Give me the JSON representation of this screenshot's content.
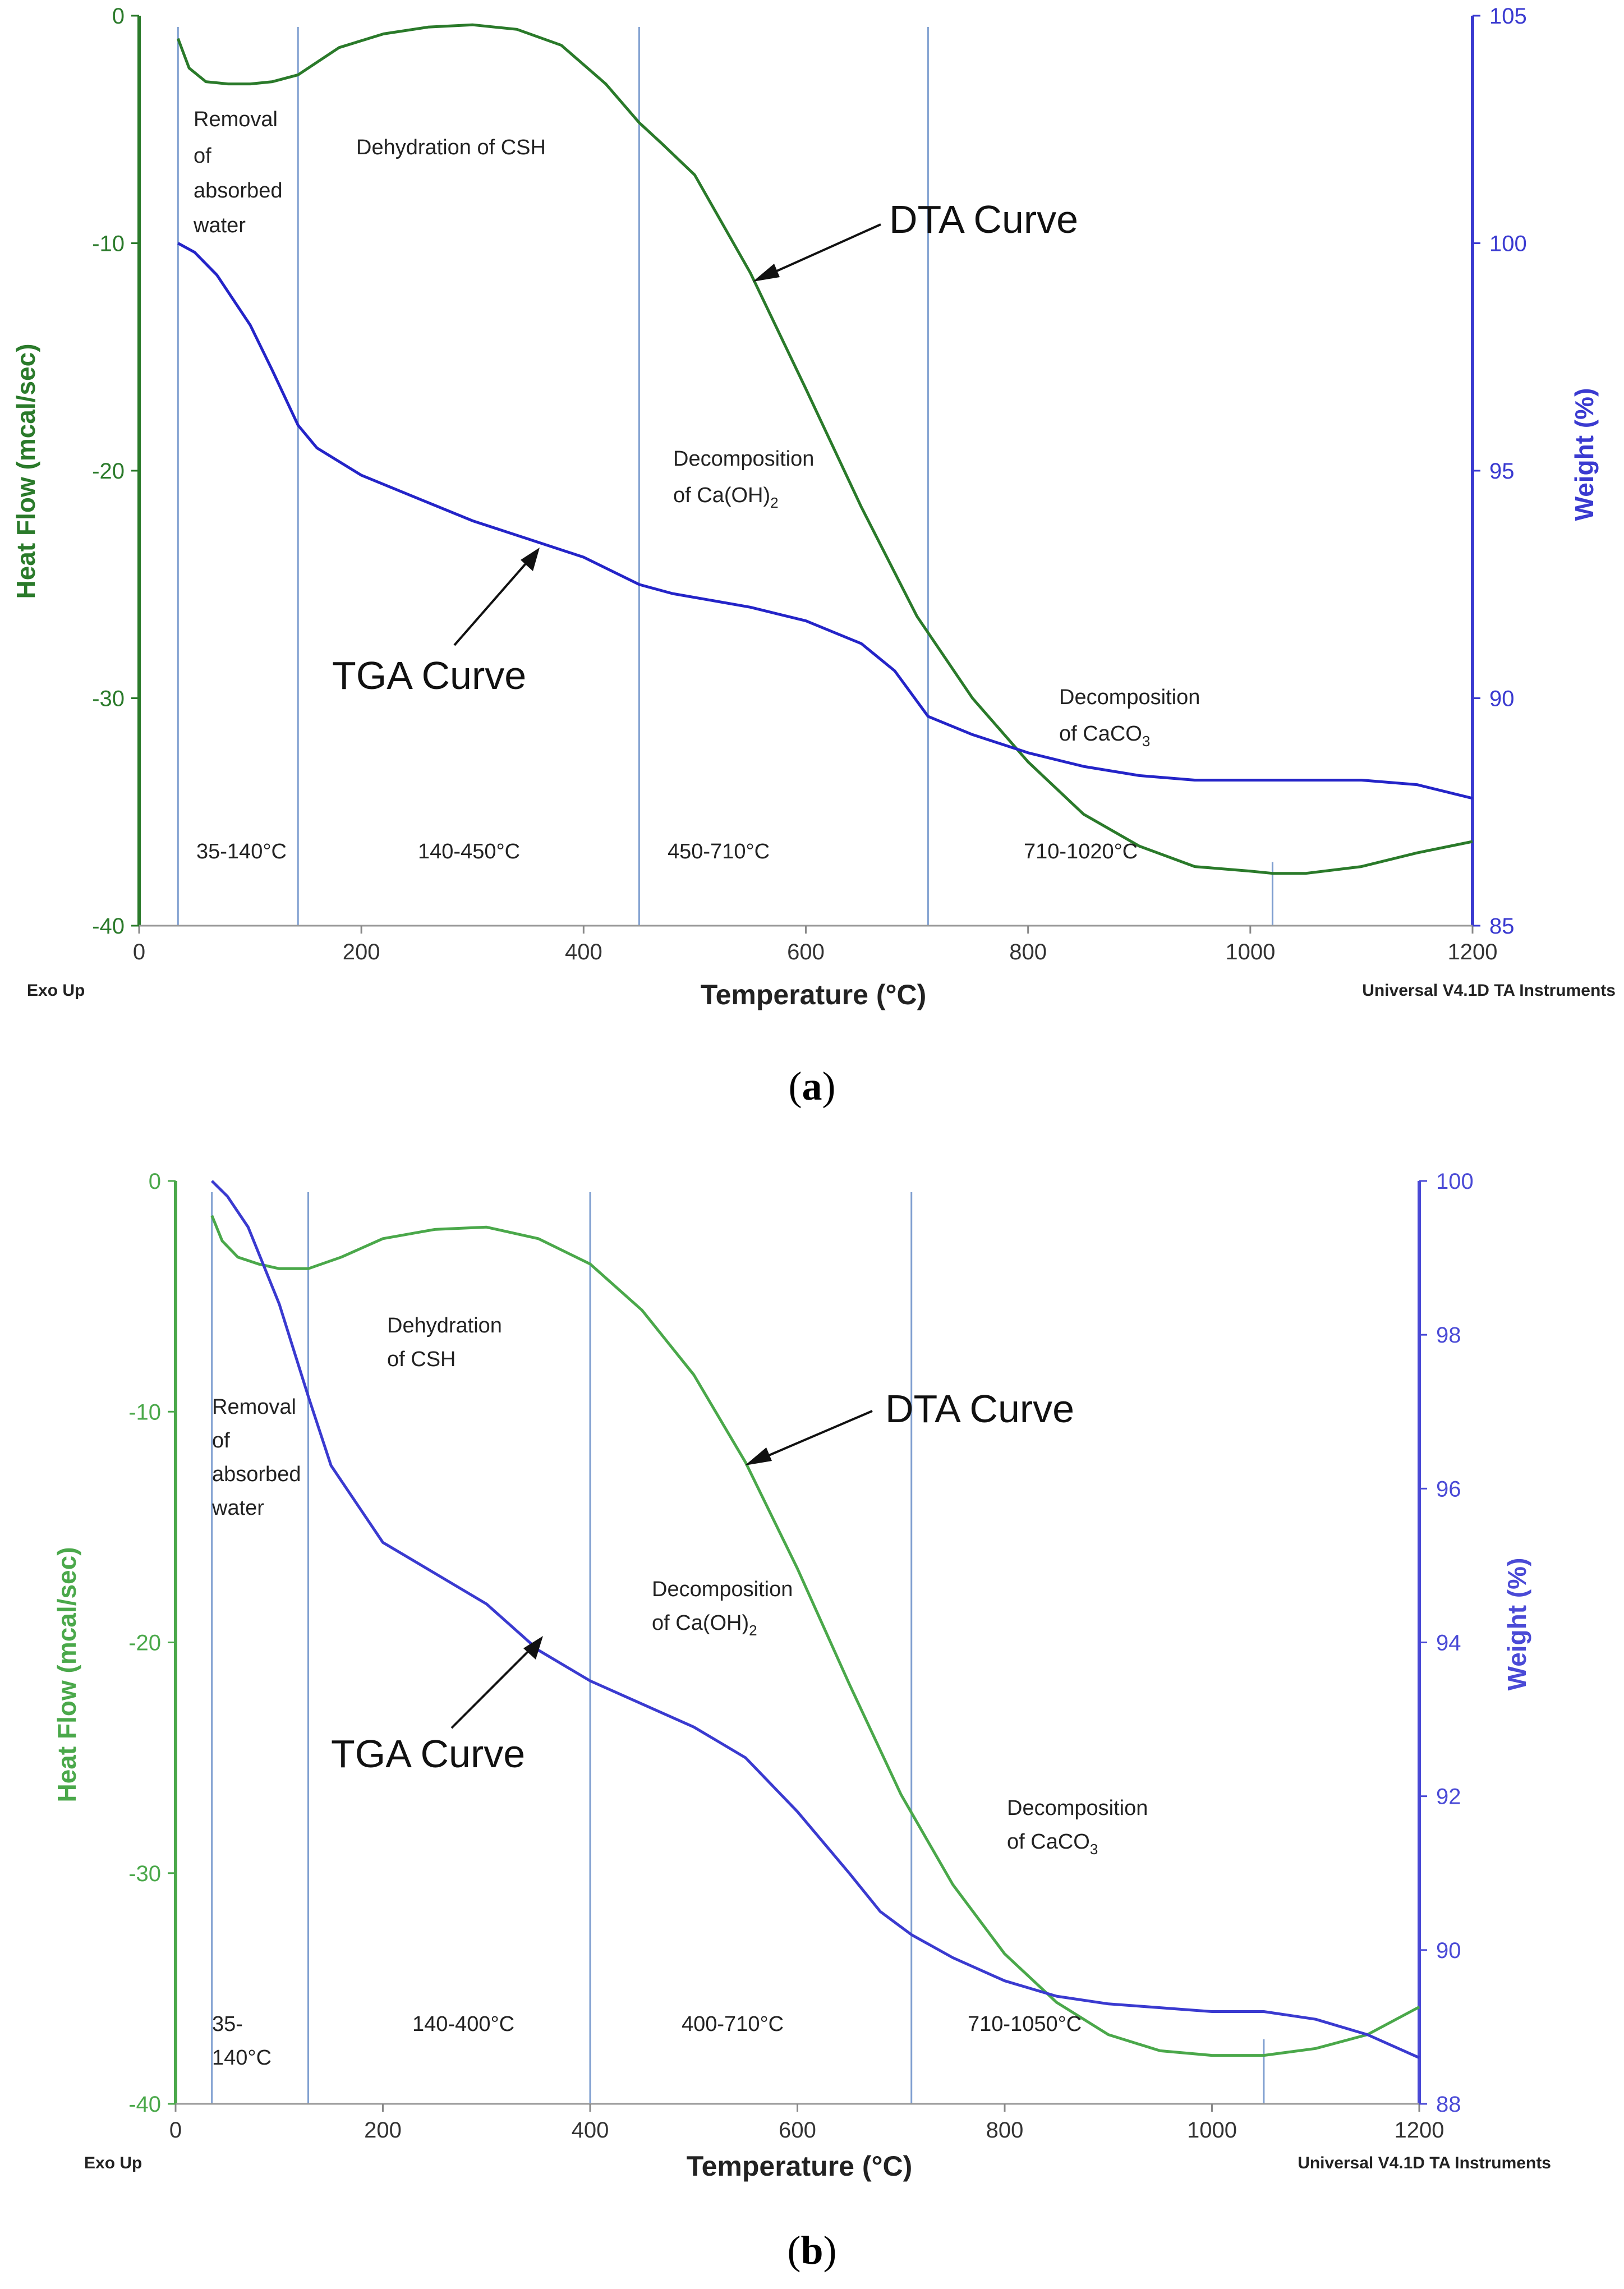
{
  "chart_data": [
    {
      "id": "a",
      "type": "line",
      "panel_label": "a",
      "xlabel": "Temperature (°C)",
      "ylabel_left": "Heat Flow (mcal/sec)",
      "ylabel_right": "Weight (%)",
      "footer_left": "Exo Up",
      "footer_right": "Universal V4.1D TA Instruments",
      "x_range": [
        0,
        1200
      ],
      "x_ticks": [
        0,
        200,
        400,
        600,
        800,
        1000,
        1200
      ],
      "y_left_range": [
        -40,
        0
      ],
      "y_left_ticks": [
        0,
        -10,
        -20,
        -30,
        -40
      ],
      "y_right_range": [
        85,
        105
      ],
      "y_right_ticks": [
        105,
        100,
        95,
        90,
        85
      ],
      "colors": {
        "dta": "#2a7a2a",
        "tga": "#2424c8",
        "axis_left": "#2a7a2a",
        "axis_right": "#3a3ad0",
        "divider": "#7f9fd0"
      },
      "dividers": [
        35,
        143,
        450,
        710,
        1020
      ],
      "series": [
        {
          "name": "DTA Curve",
          "axis": "left",
          "x": [
            35,
            45,
            60,
            80,
            100,
            120,
            143,
            180,
            220,
            260,
            300,
            340,
            380,
            420,
            450,
            470,
            500,
            550,
            600,
            650,
            700,
            750,
            800,
            850,
            900,
            950,
            1000,
            1020,
            1050,
            1100,
            1150,
            1200
          ],
          "y": [
            -1,
            -2.3,
            -2.9,
            -3.0,
            -3.0,
            -2.9,
            -2.6,
            -1.4,
            -0.8,
            -0.5,
            -0.4,
            -0.6,
            -1.3,
            -3.0,
            -4.7,
            -5.6,
            -7.0,
            -11.3,
            -16.4,
            -21.6,
            -26.4,
            -30.0,
            -32.8,
            -35.1,
            -36.5,
            -37.4,
            -37.6,
            -37.7,
            -37.7,
            -37.4,
            -36.8,
            -36.3
          ]
        },
        {
          "name": "TGA Curve",
          "axis": "right",
          "x": [
            35,
            50,
            70,
            100,
            120,
            143,
            160,
            200,
            250,
            300,
            350,
            400,
            450,
            480,
            550,
            600,
            650,
            680,
            710,
            750,
            800,
            850,
            900,
            950,
            1000,
            1050,
            1100,
            1150,
            1200
          ],
          "y": [
            100,
            99.8,
            99.3,
            98.2,
            97.2,
            96.0,
            95.5,
            94.9,
            94.4,
            93.9,
            93.5,
            93.1,
            92.5,
            92.3,
            92.0,
            91.7,
            91.2,
            90.6,
            89.6,
            89.2,
            88.8,
            88.5,
            88.3,
            88.2,
            88.2,
            88.2,
            88.2,
            88.1,
            87.8
          ]
        }
      ],
      "annotations": {
        "region1_title": [
          "Removal",
          "of",
          "absorbed",
          "water"
        ],
        "region2_title": "Dehydration of CSH",
        "region3_title_line1": "Decomposition",
        "region3_title_line2": "of Ca(OH)",
        "region3_sub": "2",
        "region4_title_line1": "Decomposition",
        "region4_title_line2": "of CaCO",
        "region4_sub": "3",
        "range1": "35-140°C",
        "range2": "140-450°C",
        "range3": "450-710°C",
        "range4": "710-1020°C",
        "dta_label": "DTA Curve",
        "tga_label": "TGA Curve"
      }
    },
    {
      "id": "b",
      "type": "line",
      "panel_label": "b",
      "xlabel": "Temperature (°C)",
      "ylabel_left": "Heat Flow (mcal/sec)",
      "ylabel_right": "Weight (%)",
      "footer_left": "Exo Up",
      "footer_right": "Universal V4.1D TA Instruments",
      "x_range": [
        0,
        1200
      ],
      "x_ticks": [
        0,
        200,
        400,
        600,
        800,
        1000,
        1200
      ],
      "y_left_range": [
        -40,
        0
      ],
      "y_left_ticks": [
        0,
        -10,
        -20,
        -30,
        -40
      ],
      "y_right_range": [
        88,
        100
      ],
      "y_right_ticks": [
        100,
        98,
        96,
        94,
        92,
        90,
        88
      ],
      "colors": {
        "dta": "#4aa84a",
        "tga": "#3a3ad0",
        "axis_left": "#4aa84a",
        "axis_right": "#4a4ad6",
        "divider": "#7f9fd0"
      },
      "dividers": [
        35,
        128,
        400,
        710,
        1050
      ],
      "series": [
        {
          "name": "DTA Curve",
          "axis": "left",
          "x": [
            35,
            45,
            60,
            80,
            100,
            128,
            160,
            200,
            250,
            300,
            350,
            400,
            450,
            500,
            550,
            600,
            650,
            700,
            750,
            800,
            850,
            900,
            950,
            1000,
            1050,
            1100,
            1150,
            1200
          ],
          "y": [
            -1.5,
            -2.6,
            -3.3,
            -3.6,
            -3.8,
            -3.8,
            -3.3,
            -2.5,
            -2.1,
            -2.0,
            -2.5,
            -3.6,
            -5.6,
            -8.4,
            -12.2,
            -16.8,
            -21.8,
            -26.6,
            -30.5,
            -33.5,
            -35.6,
            -37.0,
            -37.7,
            -37.9,
            -37.9,
            -37.6,
            -37.0,
            -35.8
          ]
        },
        {
          "name": "TGA Curve",
          "axis": "right",
          "x": [
            35,
            50,
            70,
            100,
            128,
            150,
            200,
            250,
            300,
            350,
            400,
            450,
            500,
            550,
            600,
            650,
            680,
            710,
            750,
            800,
            850,
            900,
            950,
            1000,
            1050,
            1100,
            1150,
            1200
          ],
          "y": [
            100,
            99.8,
            99.4,
            98.4,
            97.2,
            96.3,
            95.3,
            94.9,
            94.5,
            93.9,
            93.5,
            93.2,
            92.9,
            92.5,
            91.8,
            91.0,
            90.5,
            90.2,
            89.9,
            89.6,
            89.4,
            89.3,
            89.25,
            89.2,
            89.2,
            89.1,
            88.9,
            88.6
          ]
        }
      ],
      "annotations": {
        "region1_title": [
          "Removal",
          "of",
          "absorbed",
          "water"
        ],
        "region2_title_line1": "Dehydration",
        "region2_title_line2": "of CSH",
        "region3_title_line1": "Decomposition",
        "region3_title_line2": "of Ca(OH)",
        "region3_sub": "2",
        "region4_title_line1": "Decomposition",
        "region4_title_line2": "of CaCO",
        "region4_sub": "3",
        "range1_line1": "35-",
        "range1_line2": "140°C",
        "range2": "140-400°C",
        "range3": "400-710°C",
        "range4": "710-1050°C",
        "dta_label": "DTA Curve",
        "tga_label": "TGA Curve"
      }
    }
  ]
}
